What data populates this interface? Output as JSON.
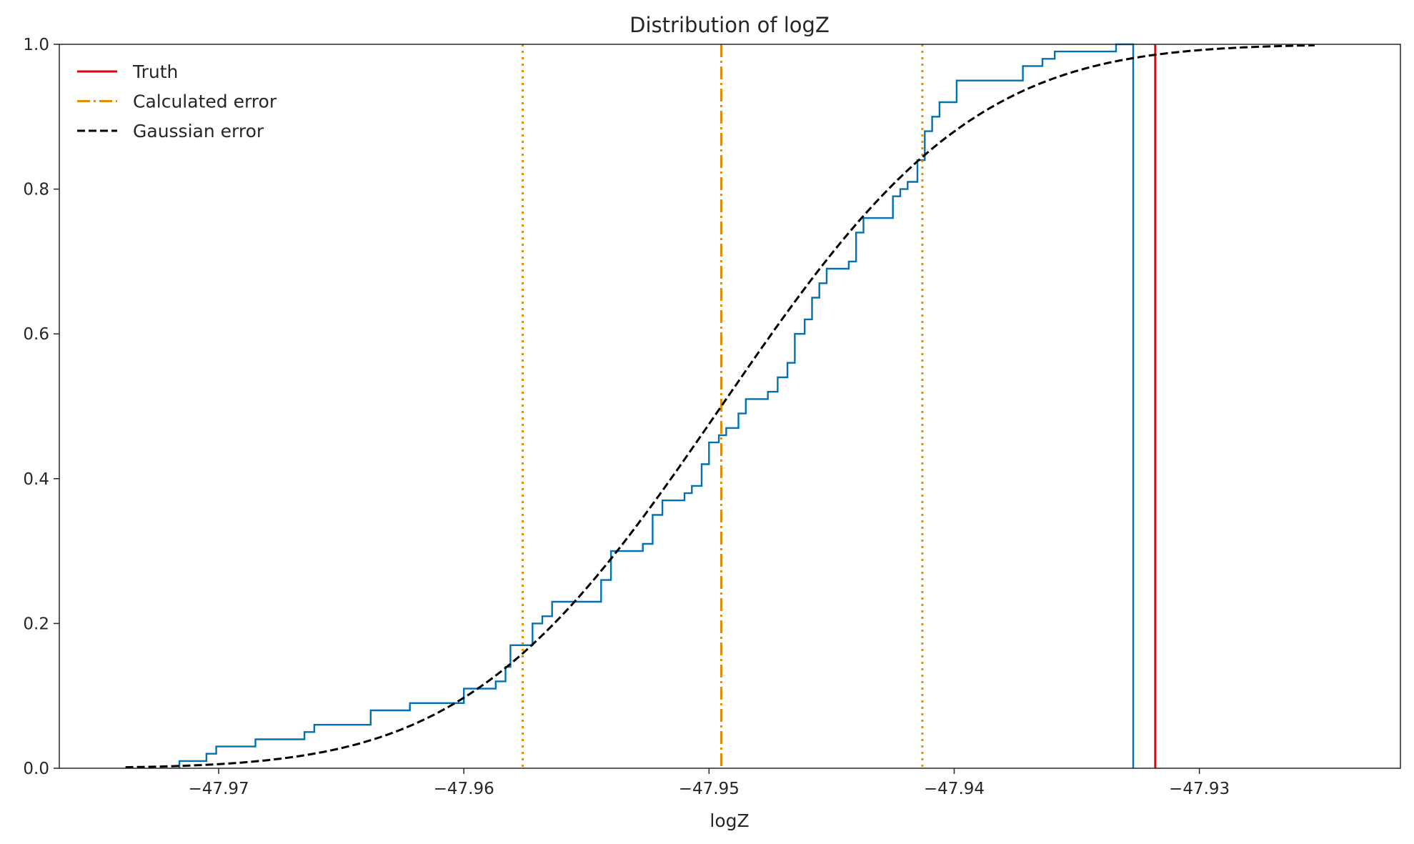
{
  "chart_data": {
    "type": "line",
    "title": "Distribution of logZ",
    "xlabel": "logZ",
    "ylabel": "",
    "xlim": [
      -47.9765,
      -47.9218
    ],
    "ylim": [
      0,
      1
    ],
    "grid": false,
    "legend_position": "top-left",
    "x_ticks": [
      -47.97,
      -47.96,
      -47.95,
      -47.94,
      -47.93
    ],
    "x_tick_labels": [
      "−47.97",
      "−47.96",
      "−47.95",
      "−47.94",
      "−47.93"
    ],
    "y_ticks": [
      0,
      0.2,
      0.4,
      0.6,
      0.8,
      1.0
    ],
    "y_tick_labels": [
      "0.0",
      "0.2",
      "0.4",
      "0.6",
      "0.8",
      "1.0"
    ],
    "colors": {
      "ecdf": "#0072b2",
      "truth": "#e8000b",
      "calculated": "#de8f05",
      "gaussian": "#000000",
      "axes": "#262626"
    },
    "legend": [
      {
        "label": "Truth",
        "style": "solid",
        "color": "#e8000b"
      },
      {
        "label": "Calculated error",
        "style": "dashdot",
        "color": "#de8f05"
      },
      {
        "label": "Gaussian error",
        "style": "dashed",
        "color": "#000000"
      }
    ],
    "ecdf_steps": [
      [
        -47.9716,
        0.01
      ],
      [
        -47.9705,
        0.02
      ],
      [
        -47.9701,
        0.03
      ],
      [
        -47.9685,
        0.04
      ],
      [
        -47.9665,
        0.05
      ],
      [
        -47.9661,
        0.06
      ],
      [
        -47.9638,
        0.08
      ],
      [
        -47.9622,
        0.09
      ],
      [
        -47.96,
        0.11
      ],
      [
        -47.9587,
        0.12
      ],
      [
        -47.9583,
        0.14
      ],
      [
        -47.9581,
        0.17
      ],
      [
        -47.9572,
        0.2
      ],
      [
        -47.9568,
        0.21
      ],
      [
        -47.9564,
        0.23
      ],
      [
        -47.9544,
        0.26
      ],
      [
        -47.954,
        0.3
      ],
      [
        -47.9527,
        0.31
      ],
      [
        -47.9523,
        0.35
      ],
      [
        -47.9519,
        0.37
      ],
      [
        -47.951,
        0.38
      ],
      [
        -47.9507,
        0.39
      ],
      [
        -47.9503,
        0.42
      ],
      [
        -47.95,
        0.45
      ],
      [
        -47.9496,
        0.46
      ],
      [
        -47.9493,
        0.47
      ],
      [
        -47.9488,
        0.49
      ],
      [
        -47.9485,
        0.51
      ],
      [
        -47.9476,
        0.52
      ],
      [
        -47.9472,
        0.54
      ],
      [
        -47.9468,
        0.56
      ],
      [
        -47.9465,
        0.6
      ],
      [
        -47.9461,
        0.62
      ],
      [
        -47.9458,
        0.65
      ],
      [
        -47.9455,
        0.67
      ],
      [
        -47.9452,
        0.69
      ],
      [
        -47.9443,
        0.7
      ],
      [
        -47.944,
        0.74
      ],
      [
        -47.9437,
        0.76
      ],
      [
        -47.9425,
        0.79
      ],
      [
        -47.9422,
        0.8
      ],
      [
        -47.9419,
        0.81
      ],
      [
        -47.9415,
        0.84
      ],
      [
        -47.9412,
        0.88
      ],
      [
        -47.9409,
        0.9
      ],
      [
        -47.9406,
        0.92
      ],
      [
        -47.9399,
        0.95
      ],
      [
        -47.9372,
        0.97
      ],
      [
        -47.9364,
        0.98
      ],
      [
        -47.9359,
        0.99
      ],
      [
        -47.9334,
        1.0
      ]
    ],
    "ecdf_x_max": -47.9327,
    "truth_x": -47.9318,
    "calculated_mean": -47.9495,
    "calculated_lower": -47.9576,
    "calculated_upper": -47.9413,
    "gaussian": {
      "mean": -47.9495,
      "sigma": 0.0081,
      "x_range": [
        -47.9738,
        -47.9253
      ]
    }
  }
}
